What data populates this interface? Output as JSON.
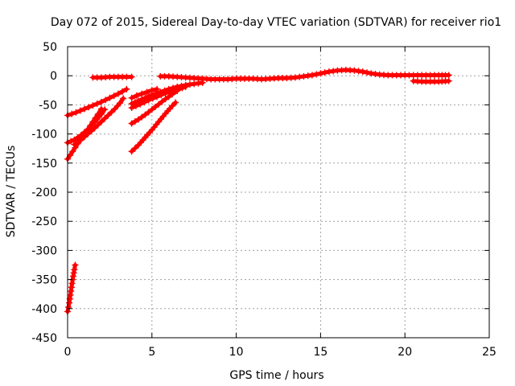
{
  "chart_data": {
    "type": "scatter",
    "title": "Day 072 of 2015, Sidereal Day-to-day VTEC variation (SDTVAR) for receiver rio1",
    "xlabel": "GPS time / hours",
    "ylabel": "SDTVAR / TECUs",
    "xlim": [
      0,
      25
    ],
    "ylim": [
      -450,
      50
    ],
    "xticks": [
      0,
      5,
      10,
      15,
      20,
      25
    ],
    "yticks": [
      50,
      0,
      -50,
      -100,
      -150,
      -200,
      -250,
      -300,
      -350,
      -400,
      -450
    ],
    "grid": true,
    "marker": "+",
    "color": "#ff0000",
    "series": [
      {
        "points": [
          [
            0.0,
            -68
          ],
          [
            0.5,
            -63
          ],
          [
            1.0,
            -57
          ],
          [
            1.5,
            -51
          ],
          [
            2.0,
            -45
          ],
          [
            2.5,
            -38
          ],
          [
            3.0,
            -31
          ],
          [
            3.5,
            -23
          ]
        ]
      },
      {
        "points": [
          [
            0.0,
            -115
          ],
          [
            0.4,
            -110
          ],
          [
            0.8,
            -102
          ],
          [
            1.2,
            -92
          ],
          [
            1.6,
            -80
          ],
          [
            2.0,
            -66
          ],
          [
            2.2,
            -58
          ]
        ]
      },
      {
        "points": [
          [
            0.0,
            -143
          ],
          [
            0.3,
            -130
          ],
          [
            0.6,
            -117
          ],
          [
            0.9,
            -105
          ],
          [
            1.2,
            -92
          ],
          [
            1.5,
            -79
          ],
          [
            1.8,
            -66
          ],
          [
            2.0,
            -57
          ]
        ]
      },
      {
        "points": [
          [
            0.4,
            -118
          ],
          [
            0.8,
            -110
          ],
          [
            1.2,
            -100
          ],
          [
            1.6,
            -90
          ],
          [
            2.0,
            -79
          ],
          [
            2.4,
            -68
          ],
          [
            2.8,
            -57
          ],
          [
            3.1,
            -47
          ],
          [
            3.3,
            -39
          ]
        ]
      },
      {
        "points": [
          [
            0.0,
            -405
          ],
          [
            0.1,
            -390
          ],
          [
            0.2,
            -370
          ],
          [
            0.3,
            -350
          ],
          [
            0.4,
            -333
          ],
          [
            0.45,
            -325
          ]
        ]
      },
      {
        "points": [
          [
            1.5,
            -3
          ],
          [
            2.0,
            -3
          ],
          [
            2.5,
            -2
          ],
          [
            3.0,
            -2
          ],
          [
            3.5,
            -2
          ],
          [
            3.8,
            -2
          ]
        ]
      },
      {
        "points": [
          [
            3.8,
            -48
          ],
          [
            4.2,
            -43
          ],
          [
            4.6,
            -38
          ],
          [
            5.0,
            -33
          ],
          [
            5.5,
            -28
          ],
          [
            6.0,
            -23
          ],
          [
            6.5,
            -19
          ],
          [
            7.0,
            -16
          ],
          [
            7.5,
            -14
          ],
          [
            8.0,
            -12
          ]
        ]
      },
      {
        "points": [
          [
            3.8,
            -55
          ],
          [
            4.3,
            -49
          ],
          [
            4.8,
            -42
          ],
          [
            5.3,
            -36
          ],
          [
            5.8,
            -30
          ],
          [
            6.3,
            -25
          ],
          [
            6.8,
            -21
          ],
          [
            7.0,
            -19
          ]
        ]
      },
      {
        "points": [
          [
            3.8,
            -82
          ],
          [
            4.2,
            -75
          ],
          [
            4.6,
            -67
          ],
          [
            5.0,
            -58
          ],
          [
            5.4,
            -49
          ],
          [
            5.8,
            -40
          ],
          [
            6.2,
            -32
          ],
          [
            6.5,
            -26
          ]
        ]
      },
      {
        "points": [
          [
            3.8,
            -130
          ],
          [
            4.2,
            -119
          ],
          [
            4.6,
            -106
          ],
          [
            5.0,
            -93
          ],
          [
            5.4,
            -79
          ],
          [
            5.8,
            -65
          ],
          [
            6.2,
            -52
          ],
          [
            6.4,
            -46
          ]
        ]
      },
      {
        "points": [
          [
            3.8,
            -38
          ],
          [
            4.1,
            -34
          ],
          [
            4.4,
            -31
          ],
          [
            4.7,
            -28
          ],
          [
            5.0,
            -25
          ],
          [
            5.3,
            -23
          ]
        ]
      },
      {
        "points": [
          [
            5.5,
            -1
          ],
          [
            6.0,
            -1
          ],
          [
            6.5,
            -2
          ],
          [
            7.0,
            -3
          ],
          [
            7.5,
            -4
          ],
          [
            8.0,
            -5
          ],
          [
            8.5,
            -6
          ],
          [
            9.0,
            -6
          ],
          [
            9.5,
            -6
          ],
          [
            10.0,
            -5
          ],
          [
            10.5,
            -5
          ],
          [
            11.0,
            -5
          ],
          [
            11.5,
            -6
          ],
          [
            12.0,
            -5
          ],
          [
            12.5,
            -4
          ],
          [
            13.0,
            -4
          ],
          [
            13.5,
            -3
          ],
          [
            14.0,
            -1
          ],
          [
            14.5,
            1
          ],
          [
            15.0,
            4
          ],
          [
            15.5,
            7
          ],
          [
            16.0,
            9
          ],
          [
            16.5,
            10
          ],
          [
            17.0,
            9
          ],
          [
            17.5,
            7
          ],
          [
            18.0,
            4
          ],
          [
            18.5,
            2
          ],
          [
            19.0,
            1
          ],
          [
            19.5,
            1
          ],
          [
            20.0,
            1
          ],
          [
            20.5,
            1
          ],
          [
            21.0,
            1
          ],
          [
            21.5,
            1
          ],
          [
            22.0,
            1
          ],
          [
            22.6,
            1
          ]
        ]
      },
      {
        "points": [
          [
            20.5,
            -9
          ],
          [
            21.0,
            -10
          ],
          [
            21.5,
            -10
          ],
          [
            22.0,
            -10
          ],
          [
            22.6,
            -9
          ]
        ]
      }
    ]
  }
}
